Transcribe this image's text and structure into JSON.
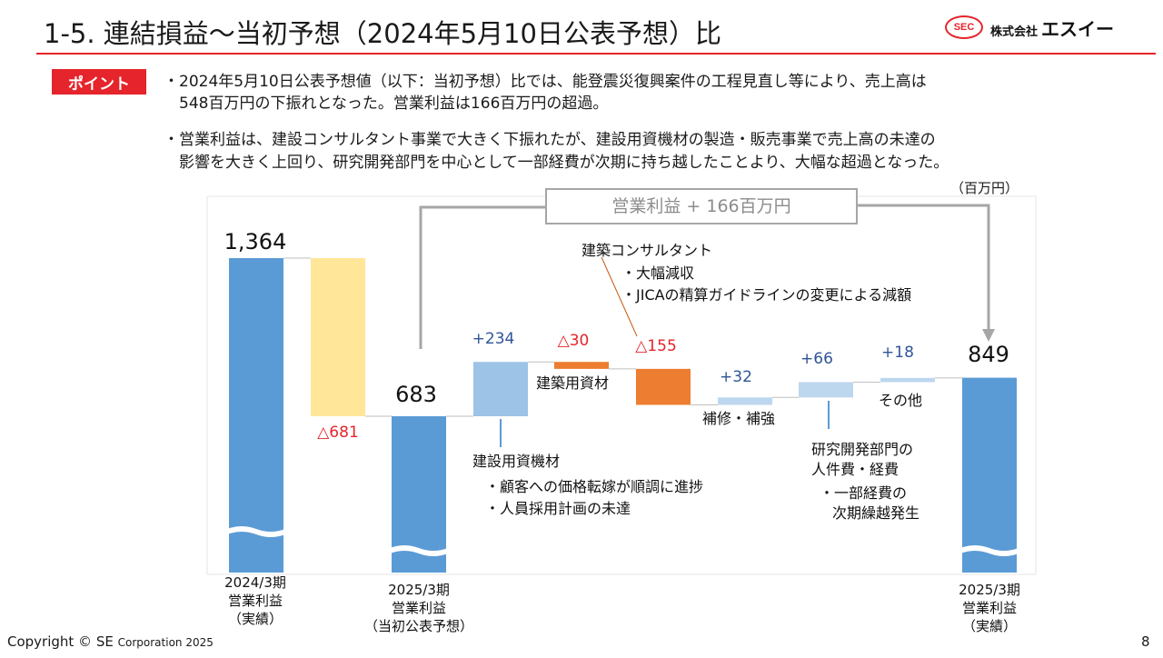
{
  "header": {
    "title": "1-5. 連結損益～当初予想（2024年5月10日公表予想）比",
    "logo_company": "株式会社",
    "logo_name": "エスイー",
    "logo_mark": "SEC"
  },
  "points": {
    "badge": "ポイント",
    "bullet1_line1": "・2024年5月10日公表予想値（以下：当初予想）比では、能登震災復興案件の工程見直し等により、売上高は",
    "bullet1_line2": "548百万円の下振れとなった。営業利益は166百万円の超過。",
    "bullet2_line1": "・営業利益は、建設コンサルタント事業で大きく下振れたが、建設用資機材の製造・販売事業で売上高の未達の",
    "bullet2_line2": "影響を大きく上回り、研究開発部門を中心として一部経費が次期に持ち越したことより、大幅な超過となった。"
  },
  "chart_data": {
    "type": "waterfall",
    "unit": "（百万円）",
    "callout": "営業利益 + 166百万円",
    "steps": [
      {
        "label_lines": [
          "2024/3期",
          "営業利益",
          "（実績）"
        ],
        "kind": "total",
        "value": 1364,
        "value_label": "1,364",
        "color": "#5b9bd5"
      },
      {
        "label_lines": [],
        "kind": "delta",
        "value": -681,
        "value_label": "△681",
        "color": "#ffe699"
      },
      {
        "label_lines": [
          "2025/3期",
          "営業利益",
          "（当初公表予想）"
        ],
        "kind": "total",
        "value": 683,
        "value_label": "683",
        "color": "#5b9bd5"
      },
      {
        "label_lines": [
          "建設用資機材"
        ],
        "kind": "delta",
        "value": 234,
        "value_label": "+234",
        "color": "#9dc3e6"
      },
      {
        "label_lines": [
          "建築用資材"
        ],
        "kind": "delta",
        "value": -30,
        "value_label": "△30",
        "color": "#ed7d31"
      },
      {
        "label_lines": [
          "建築コンサルタント"
        ],
        "kind": "delta",
        "value": -155,
        "value_label": "△155",
        "color": "#ed7d31"
      },
      {
        "label_lines": [
          "補修・補強"
        ],
        "kind": "delta",
        "value": 32,
        "value_label": "+32",
        "color": "#bdd7ee"
      },
      {
        "label_lines": [
          "研究開発部門の",
          "人件費・経費"
        ],
        "kind": "delta",
        "value": 66,
        "value_label": "+66",
        "color": "#bdd7ee"
      },
      {
        "label_lines": [
          "その他"
        ],
        "kind": "delta",
        "value": 18,
        "value_label": "+18",
        "color": "#bdd7ee"
      },
      {
        "label_lines": [
          "2025/3期",
          "営業利益",
          "（実績）"
        ],
        "kind": "total",
        "value": 849,
        "value_label": "849",
        "color": "#5b9bd5"
      }
    ],
    "annotations": {
      "construction_consulting": [
        "・大幅減収",
        "・JICAの精算ガイドラインの変更による減額"
      ],
      "construction_equipment": [
        "・顧客への価格転嫁が順調に進捗",
        "・人員採用計画の未達"
      ],
      "rd_department": [
        "・一部経費の",
        "次期繰越発生"
      ]
    },
    "colors": {
      "positive": "#2f5597",
      "negative": "#e5242b",
      "total": "#5b9bd5"
    }
  },
  "footer": {
    "copyright": "Copyright © SE",
    "corporation": "Corporation 2025",
    "page": "8"
  }
}
